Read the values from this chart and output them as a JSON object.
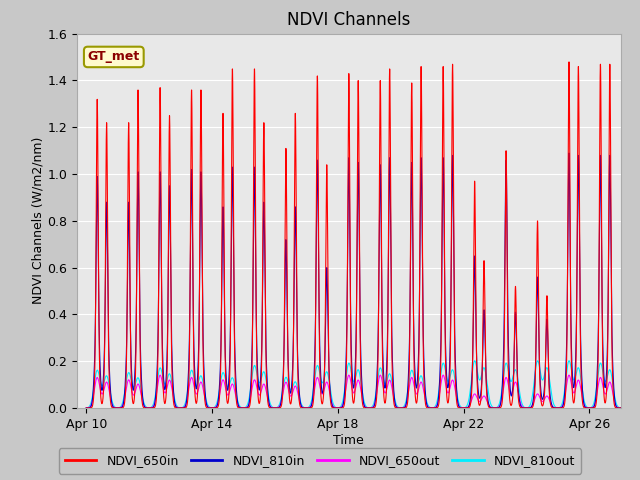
{
  "title": "NDVI Channels",
  "xlabel": "Time",
  "ylabel": "NDVI Channels (W/m2/nm)",
  "ylim": [
    0.0,
    1.6
  ],
  "fig_bg_color": "#c8c8c8",
  "plot_bg_color": "#e8e8e8",
  "series": {
    "NDVI_650in": {
      "color": "#ff0000",
      "lw": 0.8
    },
    "NDVI_810in": {
      "color": "#0000cc",
      "lw": 0.8
    },
    "NDVI_650out": {
      "color": "#ff00ff",
      "lw": 0.8
    },
    "NDVI_810out": {
      "color": "#00eeff",
      "lw": 0.8
    }
  },
  "xtick_labels": [
    "Apr 10",
    "Apr 14",
    "Apr 18",
    "Apr 22",
    "Apr 26"
  ],
  "xtick_positions": [
    0,
    4,
    8,
    12,
    16
  ],
  "legend_label": "GT_met",
  "n_days": 17,
  "ppd": 300,
  "peaks_per_day": 2,
  "peak_650in": [
    1.32,
    1.22,
    1.37,
    1.36,
    1.26,
    1.45,
    1.11,
    1.42,
    1.43,
    1.4,
    1.39,
    1.46,
    0.97,
    1.1,
    0.8,
    1.48,
    1.47
  ],
  "peak2_650in": [
    1.22,
    1.36,
    1.25,
    1.36,
    1.45,
    1.22,
    1.26,
    1.04,
    1.4,
    1.45,
    1.46,
    1.47,
    0.63,
    0.52,
    0.48,
    1.46,
    1.47
  ],
  "peak_810in": [
    0.99,
    0.88,
    1.01,
    1.02,
    0.86,
    1.03,
    0.72,
    1.06,
    1.07,
    1.04,
    1.05,
    1.07,
    0.65,
    1.06,
    0.56,
    1.09,
    1.08
  ],
  "peak2_810in": [
    0.88,
    1.01,
    0.95,
    1.01,
    1.03,
    0.88,
    0.86,
    0.6,
    1.05,
    1.07,
    1.07,
    1.08,
    0.42,
    0.41,
    0.38,
    1.08,
    1.08
  ],
  "peak_650out": [
    0.13,
    0.12,
    0.14,
    0.13,
    0.12,
    0.12,
    0.11,
    0.13,
    0.14,
    0.14,
    0.13,
    0.14,
    0.06,
    0.13,
    0.06,
    0.14,
    0.13
  ],
  "peak_810out": [
    0.16,
    0.15,
    0.17,
    0.16,
    0.15,
    0.18,
    0.13,
    0.18,
    0.19,
    0.17,
    0.16,
    0.19,
    0.2,
    0.19,
    0.2,
    0.2,
    0.19
  ]
}
